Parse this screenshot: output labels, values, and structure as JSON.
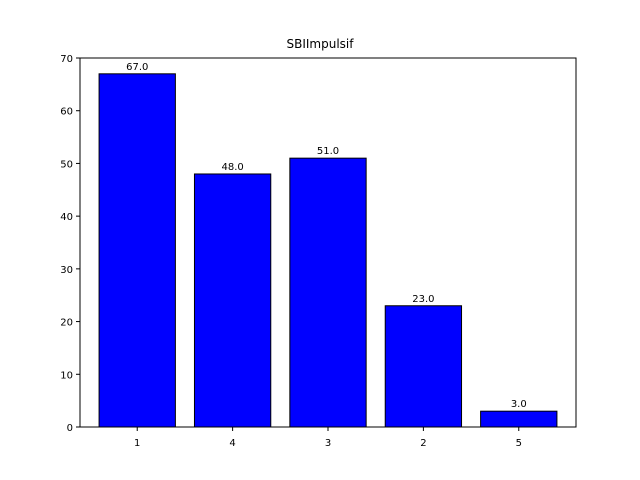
{
  "chart_data": {
    "type": "bar",
    "title": "SBIImpulsif",
    "xlabel": "",
    "ylabel": "",
    "categories": [
      "1",
      "4",
      "3",
      "2",
      "5"
    ],
    "values": [
      67,
      48,
      51,
      23,
      3
    ],
    "data_labels": [
      "67.0",
      "48.0",
      "51.0",
      "23.0",
      "3.0"
    ],
    "ylim": [
      0,
      70
    ],
    "yticks": [
      0,
      10,
      20,
      30,
      40,
      50,
      60,
      70
    ],
    "grid": false,
    "legend": "none",
    "bar_color": "#0000ff",
    "bar_edge_color": "#000000"
  }
}
